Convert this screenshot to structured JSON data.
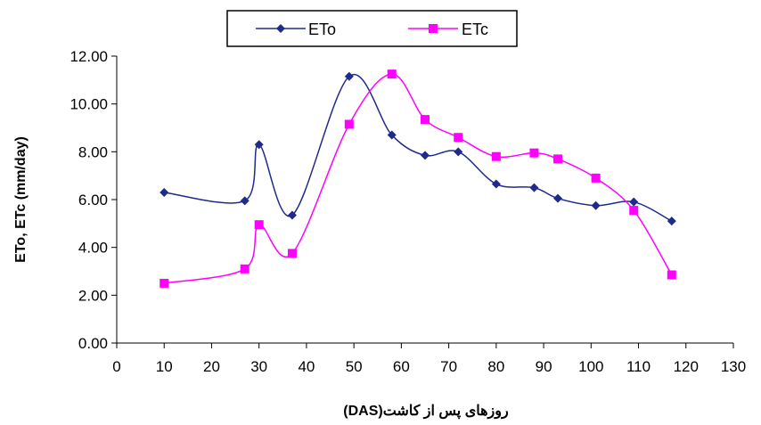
{
  "chart_data": {
    "type": "line",
    "smooth": true,
    "xlabel": "روزهای پس از کاشت(DAS)",
    "ylabel": "ETo, ETc (mm/day)",
    "xlim": [
      0,
      130
    ],
    "ylim": [
      0,
      12
    ],
    "x_ticks": [
      "0",
      "10",
      "20",
      "30",
      "40",
      "50",
      "60",
      "70",
      "80",
      "90",
      "100",
      "110",
      "120",
      "130"
    ],
    "y_ticks": [
      "0.00",
      "2.00",
      "4.00",
      "6.00",
      "8.00",
      "10.00",
      "12.00"
    ],
    "grid": false,
    "legend_position": "top",
    "series": [
      {
        "name": "ETo",
        "color": "#1f2a8c",
        "marker": "diamond",
        "x": [
          10,
          27,
          30,
          37,
          49,
          58,
          65,
          72,
          80,
          88,
          93,
          101,
          109,
          117
        ],
        "y": [
          6.3,
          5.95,
          8.3,
          5.35,
          11.15,
          8.7,
          7.85,
          8.0,
          6.65,
          6.5,
          6.05,
          5.75,
          5.9,
          5.1
        ]
      },
      {
        "name": "ETc",
        "color": "#ff00ff",
        "marker": "square",
        "x": [
          10,
          27,
          30,
          37,
          49,
          58,
          65,
          72,
          80,
          88,
          93,
          101,
          109,
          117
        ],
        "y": [
          2.5,
          3.1,
          4.95,
          3.75,
          9.15,
          11.25,
          9.35,
          8.6,
          7.8,
          7.95,
          7.7,
          6.9,
          5.55,
          2.85
        ]
      }
    ]
  }
}
